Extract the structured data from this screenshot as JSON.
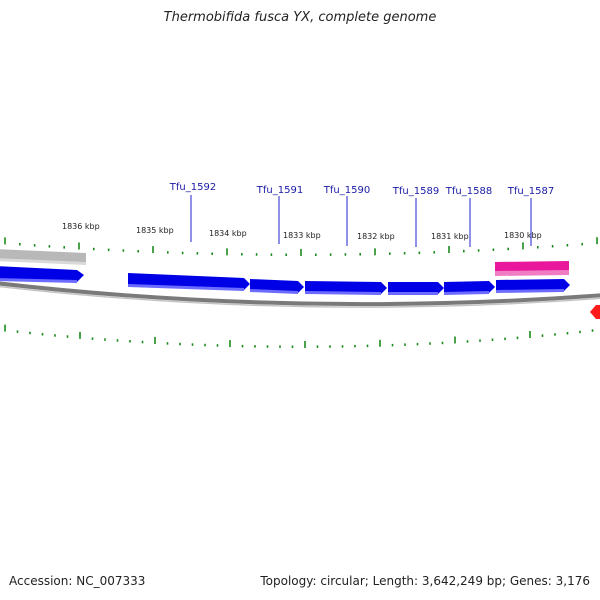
{
  "title": "Thermobifida fusca YX, complete genome",
  "footer": {
    "accession": "Accession: NC_007333",
    "stats": "Topology: circular; Length: 3,642,249 bp; Genes: 3,176"
  },
  "kbp_labels": [
    "1836 kbp",
    "1835 kbp",
    "1834 kbp",
    "1833 kbp",
    "1832 kbp",
    "1831 kbp",
    "1830 kbp"
  ],
  "gene_labels": [
    "Tfu_1592",
    "Tfu_1591",
    "Tfu_1590",
    "Tfu_1589",
    "Tfu_1588",
    "Tfu_1587"
  ],
  "colors": {
    "gene": "#0000e6",
    "pink_feature": "#e8179b",
    "grey_feature": "#b8b8b8",
    "backbone": "#7a7a7a",
    "tick": "#1a8a1a",
    "label_line": "#2222cc",
    "red_marker": "#ff1a1a"
  }
}
